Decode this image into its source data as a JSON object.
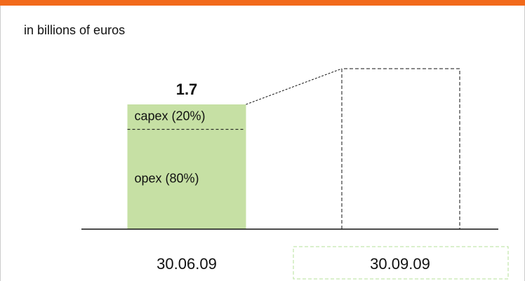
{
  "chart_data": {
    "type": "bar",
    "subtitle": "in billions of euros",
    "categories": [
      "30.06.09",
      "30.09.09"
    ],
    "values": [
      1.7,
      null
    ],
    "color": "#c6e0a4",
    "segments": [
      {
        "label": "capex (20%)",
        "share": 20
      },
      {
        "label": "opex (80%)",
        "share": 80
      }
    ]
  }
}
